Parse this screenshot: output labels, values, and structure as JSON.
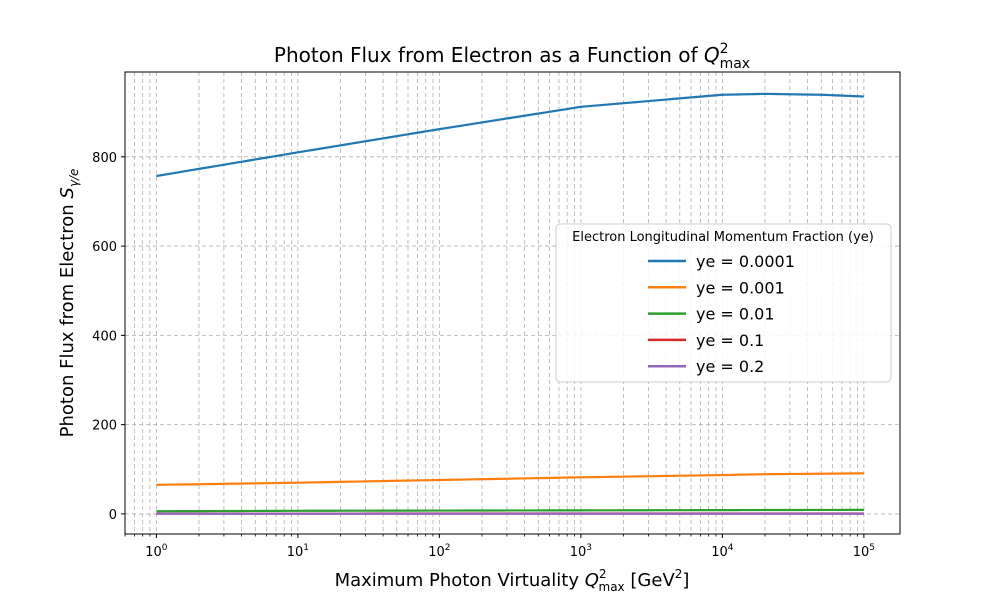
{
  "chart_data": {
    "type": "line",
    "title": {
      "prefix": "Photon Flux from Electron as a Function of ",
      "math_base": "Q",
      "math_sup": "2",
      "math_sub": "max"
    },
    "xlabel": {
      "prefix": "Maximum Photon Virtuality ",
      "math_base": "Q",
      "math_sup": "2",
      "math_sub": "max",
      "unit_open": " [GeV",
      "unit_sup": "2",
      "unit_close": "]"
    },
    "ylabel": {
      "prefix": "Photon Flux from Electron ",
      "math_base": "S",
      "math_sub": "γ/e"
    },
    "x_scale": "log",
    "xlim": [
      0.6,
      180000
    ],
    "ylim": [
      -45,
      990
    ],
    "x_ticks": [
      {
        "value": 1,
        "base": "10",
        "exp": "0"
      },
      {
        "value": 10,
        "base": "10",
        "exp": "1"
      },
      {
        "value": 100,
        "base": "10",
        "exp": "2"
      },
      {
        "value": 1000,
        "base": "10",
        "exp": "3"
      },
      {
        "value": 10000,
        "base": "10",
        "exp": "4"
      },
      {
        "value": 100000,
        "base": "10",
        "exp": "5"
      }
    ],
    "y_ticks": [
      {
        "value": 0,
        "label": "0"
      },
      {
        "value": 200,
        "label": "200"
      },
      {
        "value": 400,
        "label": "400"
      },
      {
        "value": 600,
        "label": "600"
      },
      {
        "value": 800,
        "label": "800"
      }
    ],
    "grid": true,
    "legend": {
      "title": "Electron Longitudinal Momentum Fraction (ye)",
      "placement": "center-right"
    },
    "x": [
      1,
      10,
      100,
      1000,
      10000,
      20000,
      50000,
      100000
    ],
    "series": [
      {
        "name": "ye = 0.0001",
        "color": "#1f77b4",
        "values": [
          757,
          810,
          862,
          912,
          939,
          941,
          939,
          935
        ]
      },
      {
        "name": "ye = 0.001",
        "color": "#ff7f0e",
        "values": [
          65,
          70,
          76,
          82,
          87,
          89,
          90,
          91
        ]
      },
      {
        "name": "ye = 0.01",
        "color": "#2ca02c",
        "values": [
          6,
          7,
          7.5,
          8,
          8.5,
          8.7,
          8.9,
          9
        ]
      },
      {
        "name": "ye = 0.1",
        "color": "#d62728",
        "values": [
          0.8,
          0.8,
          0.9,
          0.9,
          0.9,
          0.9,
          0.9,
          0.9
        ]
      },
      {
        "name": "ye = 0.2",
        "color": "#9467bd",
        "values": [
          0.3,
          0.3,
          0.3,
          0.3,
          0.3,
          0.3,
          0.3,
          0.3
        ]
      }
    ]
  }
}
